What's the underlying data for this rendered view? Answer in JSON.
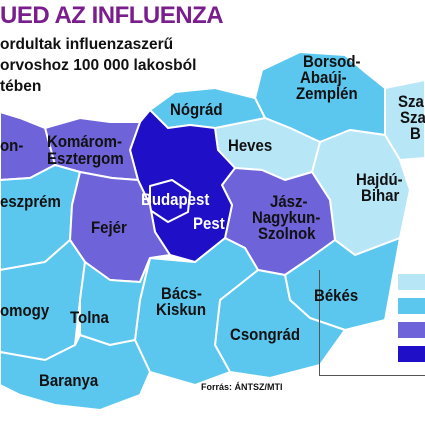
{
  "header": {
    "title": "UED AZ INFLUENZA",
    "subtitle_lines": [
      "ordultak influenzaszerű",
      " orvoshoz 100 000 lakosból",
      "tében"
    ]
  },
  "colors": {
    "level1": "#b7e6f7",
    "level2": "#5bc6ee",
    "level3": "#6f63da",
    "level4": "#1f10c8",
    "border": "#ffffff",
    "title": "#7a1e8e"
  },
  "counties": {
    "borsod": {
      "label_lines": [
        "Borsod-",
        "Abaúj-",
        "Zemplén"
      ],
      "level": 2
    },
    "szabolcs": {
      "label_lines": [
        "Sza",
        "Sza",
        "B"
      ],
      "level": 1
    },
    "nograd": {
      "label_lines": [
        "Nógrád"
      ],
      "level": 2
    },
    "heves": {
      "label_lines": [
        "Heves"
      ],
      "level": 1
    },
    "hajdu": {
      "label_lines": [
        "Hajdú-",
        "Bihar"
      ],
      "level": 1
    },
    "gyor": {
      "label_lines": [
        "on-"
      ],
      "level": 3
    },
    "komarom": {
      "label_lines": [
        "Komárom-",
        "Esztergom"
      ],
      "level": 3
    },
    "veszprem": {
      "label_lines": [
        "eszprém"
      ],
      "level": 2
    },
    "fejer": {
      "label_lines": [
        "Fejér"
      ],
      "level": 3
    },
    "budapest": {
      "label_lines": [
        "Budapest"
      ],
      "level": 4
    },
    "pest": {
      "label_lines": [
        "Pest"
      ],
      "level": 4
    },
    "jasz": {
      "label_lines": [
        "Jász-",
        "Nagykun-",
        "Szolnok"
      ],
      "level": 3
    },
    "somogy": {
      "label_lines": [
        "omogy"
      ],
      "level": 2
    },
    "tolna": {
      "label_lines": [
        "Tolna"
      ],
      "level": 2
    },
    "bacs": {
      "label_lines": [
        "Bács-",
        "Kiskun"
      ],
      "level": 2
    },
    "bekes": {
      "label_lines": [
        "Békés"
      ],
      "level": 2
    },
    "csongrad": {
      "label_lines": [
        "Csongrád"
      ],
      "level": 2
    },
    "baranya": {
      "label_lines": [
        "Baranya"
      ],
      "level": 2
    }
  },
  "legend": {
    "levels": [
      1,
      2,
      3,
      4
    ]
  },
  "source": "Forrás: ÁNTSZ/MTI"
}
